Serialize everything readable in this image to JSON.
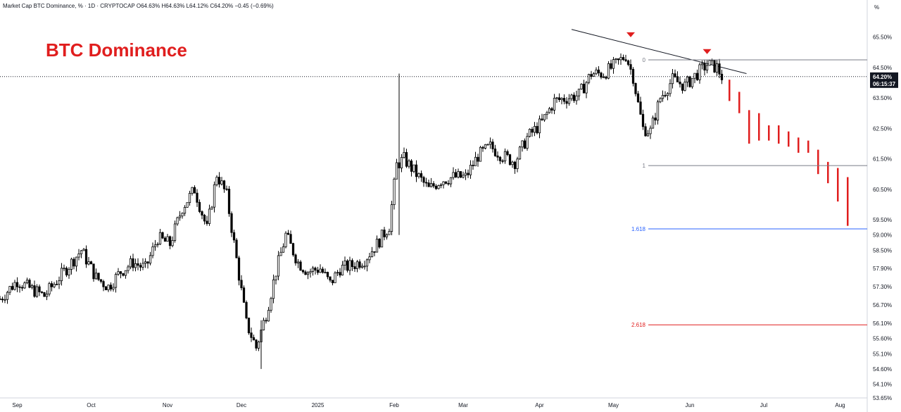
{
  "header": {
    "symbol_text": "Market Cap BTC Dominance, % · 1D · CRYPTOCAP",
    "ohlc_text": "O64.63% H64.63% L64.12% C64.20% −0.45 (−0.69%)"
  },
  "annotation_title": "BTC Dominance",
  "unit_label": "%",
  "last_price": {
    "value_label": "64.20%",
    "countdown": "06:15:37",
    "value": 64.2
  },
  "colors": {
    "bull": "#ffffff",
    "bear": "#000000",
    "projection": "#e01e1e",
    "title": "#e01e1e",
    "fib_top": "#787b86",
    "fib_1618": "#2962ff",
    "fib_2618": "#e01e1e"
  },
  "chart_data": {
    "type": "candlestick",
    "title": "BTC Dominance",
    "xlabel": "",
    "ylabel": "",
    "ylim": [
      53.65,
      66.3
    ],
    "x_range": [
      "2024-08-25",
      "2025-08-12"
    ],
    "y_ticks": [
      "65.50%",
      "64.50%",
      "63.50%",
      "62.50%",
      "61.50%",
      "60.50%",
      "59.50%",
      "59.00%",
      "58.50%",
      "57.90%",
      "57.30%",
      "56.70%",
      "56.10%",
      "55.60%",
      "55.10%",
      "54.60%",
      "54.10%",
      "53.65%"
    ],
    "y_tick_values": [
      65.5,
      64.5,
      63.5,
      62.5,
      61.5,
      60.5,
      59.5,
      59.0,
      58.5,
      57.9,
      57.3,
      56.7,
      56.1,
      55.6,
      55.1,
      54.6,
      54.1,
      53.65
    ],
    "x_ticks": [
      {
        "label": "Sep",
        "date": "2024-09-01"
      },
      {
        "label": "Oct",
        "date": "2024-10-01"
      },
      {
        "label": "Nov",
        "date": "2024-11-01"
      },
      {
        "label": "Dec",
        "date": "2024-12-01"
      },
      {
        "label": "2025",
        "date": "2025-01-01"
      },
      {
        "label": "Feb",
        "date": "2025-02-01"
      },
      {
        "label": "Mar",
        "date": "2025-03-01"
      },
      {
        "label": "Apr",
        "date": "2025-04-01"
      },
      {
        "label": "May",
        "date": "2025-05-01"
      },
      {
        "label": "Jun",
        "date": "2025-06-01"
      },
      {
        "label": "Jul",
        "date": "2025-07-01"
      },
      {
        "label": "Aug",
        "date": "2025-08-01"
      }
    ],
    "price_series": [
      [
        "2024-08-25",
        56.9
      ],
      [
        "2024-09-01",
        57.5
      ],
      [
        "2024-09-05",
        57.3
      ],
      [
        "2024-09-12",
        57.0
      ],
      [
        "2024-09-17",
        57.5
      ],
      [
        "2024-09-22",
        58.0
      ],
      [
        "2024-09-27",
        58.5
      ],
      [
        "2024-10-03",
        57.6
      ],
      [
        "2024-10-08",
        57.3
      ],
      [
        "2024-10-13",
        57.8
      ],
      [
        "2024-10-18",
        58.1
      ],
      [
        "2024-10-23",
        57.9
      ],
      [
        "2024-10-28",
        58.9
      ],
      [
        "2024-11-02",
        58.7
      ],
      [
        "2024-11-07",
        59.9
      ],
      [
        "2024-11-12",
        60.5
      ],
      [
        "2024-11-17",
        59.2
      ],
      [
        "2024-11-21",
        61.0
      ],
      [
        "2024-11-25",
        60.3
      ],
      [
        "2024-11-29",
        58.2
      ],
      [
        "2024-12-03",
        56.1
      ],
      [
        "2024-12-07",
        55.3
      ],
      [
        "2024-12-11",
        56.4
      ],
      [
        "2024-12-15",
        57.8
      ],
      [
        "2024-12-19",
        59.0
      ],
      [
        "2024-12-24",
        58.1
      ],
      [
        "2024-12-28",
        57.8
      ],
      [
        "2025-01-02",
        57.9
      ],
      [
        "2025-01-06",
        57.4
      ],
      [
        "2025-01-10",
        57.9
      ],
      [
        "2025-01-15",
        58.0
      ],
      [
        "2025-01-20",
        58.2
      ],
      [
        "2025-01-25",
        58.7
      ],
      [
        "2025-01-30",
        59.3
      ],
      [
        "2025-02-02",
        61.3
      ],
      [
        "2025-02-05",
        61.5
      ],
      [
        "2025-02-10",
        61.0
      ],
      [
        "2025-02-15",
        60.5
      ],
      [
        "2025-02-20",
        60.8
      ],
      [
        "2025-02-25",
        60.9
      ],
      [
        "2025-03-02",
        60.9
      ],
      [
        "2025-03-07",
        61.6
      ],
      [
        "2025-03-12",
        61.9
      ],
      [
        "2025-03-17",
        61.6
      ],
      [
        "2025-03-22",
        61.4
      ],
      [
        "2025-03-27",
        62.2
      ],
      [
        "2025-04-02",
        62.7
      ],
      [
        "2025-04-07",
        63.4
      ],
      [
        "2025-04-12",
        63.5
      ],
      [
        "2025-04-17",
        63.6
      ],
      [
        "2025-04-22",
        64.3
      ],
      [
        "2025-04-27",
        64.3
      ],
      [
        "2025-05-02",
        64.6
      ],
      [
        "2025-05-06",
        64.9
      ],
      [
        "2025-05-09",
        64.2
      ],
      [
        "2025-05-11",
        63.3
      ],
      [
        "2025-05-13",
        62.5
      ],
      [
        "2025-05-16",
        62.4
      ],
      [
        "2025-05-20",
        63.5
      ],
      [
        "2025-05-25",
        64.1
      ],
      [
        "2025-05-30",
        63.9
      ],
      [
        "2025-06-04",
        64.3
      ],
      [
        "2025-06-08",
        64.6
      ],
      [
        "2025-06-12",
        64.5
      ],
      [
        "2025-06-14",
        64.2
      ]
    ],
    "projection": [
      {
        "date": "2025-06-17",
        "open": 64.1,
        "close": 63.4
      },
      {
        "date": "2025-06-21",
        "open": 63.7,
        "close": 63.0
      },
      {
        "date": "2025-06-25",
        "open": 63.1,
        "close": 62.0
      },
      {
        "date": "2025-06-29",
        "open": 63.0,
        "close": 62.1
      },
      {
        "date": "2025-07-03",
        "open": 62.6,
        "close": 62.1
      },
      {
        "date": "2025-07-07",
        "open": 62.6,
        "close": 62.0
      },
      {
        "date": "2025-07-11",
        "open": 62.4,
        "close": 61.9
      },
      {
        "date": "2025-07-15",
        "open": 62.2,
        "close": 61.7
      },
      {
        "date": "2025-07-19",
        "open": 62.1,
        "close": 61.7
      },
      {
        "date": "2025-07-23",
        "open": 61.8,
        "close": 61.0
      },
      {
        "date": "2025-07-27",
        "open": 61.4,
        "close": 60.7
      },
      {
        "date": "2025-07-31",
        "open": 61.2,
        "close": 60.1
      },
      {
        "date": "2025-08-04",
        "open": 60.9,
        "close": 59.3
      }
    ],
    "trendline": [
      [
        "2025-04-14",
        65.75
      ],
      [
        "2025-06-24",
        64.3
      ]
    ],
    "reversal_markers": [
      {
        "date": "2025-05-08",
        "value": 65.4
      },
      {
        "date": "2025-06-08",
        "value": 64.85
      }
    ],
    "spikes": [
      {
        "date": "2025-02-03",
        "low": 59.0,
        "high": 64.3
      },
      {
        "date": "2024-12-09",
        "low": 54.6,
        "high": 56.2
      }
    ],
    "fib_levels": [
      {
        "label": "0",
        "value": 64.75,
        "start": "2025-05-08"
      },
      {
        "label": "1",
        "value": 61.28,
        "start": "2025-05-08"
      },
      {
        "label": "1.618",
        "value": 59.2,
        "start": "2025-05-08"
      },
      {
        "label": "2.618",
        "value": 56.05,
        "start": "2025-05-08"
      }
    ],
    "current_price": 64.2
  }
}
